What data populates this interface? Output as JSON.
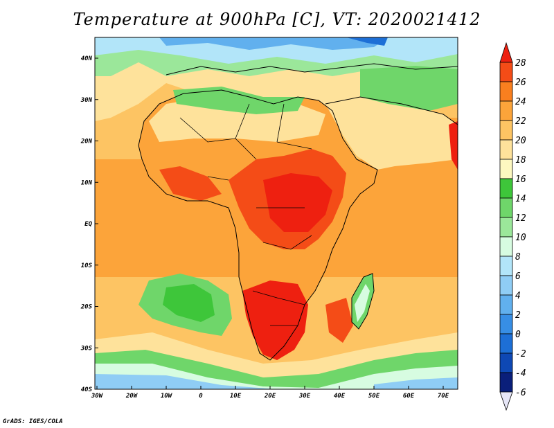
{
  "title": "Temperature at 900hPa [C], VT: 2020021412",
  "credit": "GrADS: IGES/COLA",
  "axes": {
    "lon_ticks": [
      "30W",
      "20W",
      "10W",
      "0",
      "10E",
      "20E",
      "30E",
      "40E",
      "50E",
      "60E",
      "70E"
    ],
    "lat_ticks": [
      "40N",
      "30N",
      "20N",
      "10N",
      "EQ",
      "10S",
      "20S",
      "30S",
      "40S"
    ]
  },
  "colorbar": {
    "levels": [
      "28",
      "26",
      "24",
      "22",
      "20",
      "18",
      "16",
      "14",
      "12",
      "10",
      "8",
      "6",
      "4",
      "2",
      "0",
      "-2",
      "-4",
      "-6"
    ],
    "colors": [
      "#ee2010",
      "#f44c17",
      "#f97f1f",
      "#fca43a",
      "#fdc463",
      "#fee29b",
      "#fdf8c0",
      "#3ec63a",
      "#6fd66a",
      "#9be79a",
      "#d7fce1",
      "#b2e5f9",
      "#8fcdf5",
      "#61b0ee",
      "#378ee5",
      "#1d6fd6",
      "#0e48b4",
      "#0a1f7a",
      "#e6e6f7"
    ]
  },
  "map": {
    "fields": [
      {
        "name": "sea-cold-north",
        "color": "#61b0ee"
      },
      {
        "name": "ocean-mild",
        "color": "#fdc463"
      },
      {
        "name": "land-warm",
        "color": "#f97f1f"
      },
      {
        "name": "land-hot",
        "color": "#ee2010"
      },
      {
        "name": "cool-green",
        "color": "#6fd66a"
      },
      {
        "name": "south-cold",
        "color": "#8fcdf5"
      }
    ]
  }
}
